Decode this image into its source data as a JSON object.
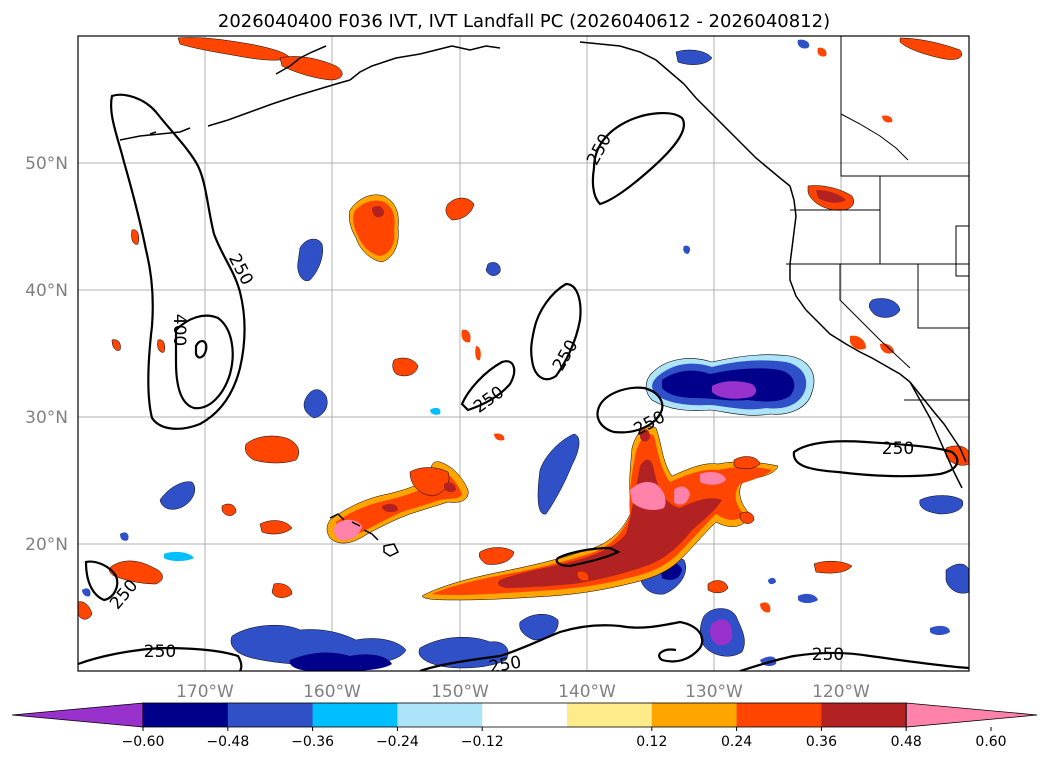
{
  "title": "2026040400 F036 IVT, IVT Landfall PC (2026040612 - 2026040812)",
  "map": {
    "extent": {
      "lon_min": -180,
      "lon_max": -110,
      "lat_min": 10,
      "lat_max": 60
    },
    "lat_labels": [
      "20°N",
      "30°N",
      "40°N",
      "50°N"
    ],
    "lon_labels": [
      "170°W",
      "160°W",
      "150°W",
      "140°W",
      "130°W",
      "120°W"
    ],
    "contour_labels": [
      "250",
      "250",
      "400",
      "250",
      "250",
      "250",
      "250",
      "250",
      "250",
      "250",
      "250"
    ]
  },
  "colorbar": {
    "ticks": [
      "−0.60",
      "−0.48",
      "−0.36",
      "−0.24",
      "−0.12",
      "0.12",
      "0.24",
      "0.36",
      "0.48",
      "0.60"
    ],
    "colors": [
      "#9932cc",
      "#00008b",
      "#3050c8",
      "#00bfff",
      "#aee4fa",
      "#ffffff",
      "#ffeb8a",
      "#ffa500",
      "#ff4500",
      "#b22222",
      "#ff82ab"
    ]
  }
}
